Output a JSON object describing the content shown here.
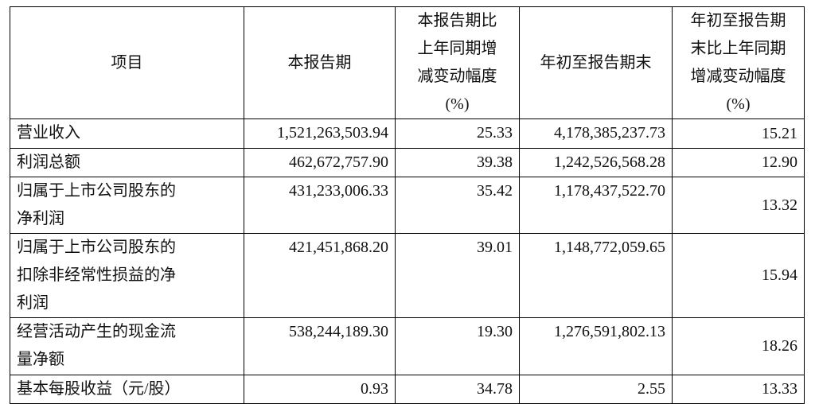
{
  "table": {
    "header": [
      [
        "项目"
      ],
      [
        "本报告期"
      ],
      [
        "本报告期比",
        "上年同期增",
        "减变动幅度",
        "(%)"
      ],
      [
        "年初至报告期末"
      ],
      [
        "年初至报告期",
        "末比上年同期",
        "增减变动幅度",
        "(%)"
      ]
    ],
    "rows": [
      [
        [
          "营业收入"
        ],
        "1,521,263,503.94",
        "25.33",
        "4,178,385,237.73",
        "15.21"
      ],
      [
        [
          "利润总额"
        ],
        "462,672,757.90",
        "39.38",
        "1,242,526,568.28",
        "12.90"
      ],
      [
        [
          "归属于上市公司股东的",
          "净利润"
        ],
        "431,233,006.33",
        "35.42",
        "1,178,437,522.70",
        "13.32"
      ],
      [
        [
          "归属于上市公司股东的",
          "扣除非经常性损益的净",
          "利润"
        ],
        "421,451,868.20",
        "39.01",
        "1,148,772,059.65",
        "15.94"
      ],
      [
        [
          "经营活动产生的现金流",
          "量净额"
        ],
        "538,244,189.30",
        "19.30",
        "1,276,591,802.13",
        "18.26"
      ],
      [
        [
          "基本每股收益（元/股）"
        ],
        "0.93",
        "34.78",
        "2.55",
        "13.33"
      ]
    ]
  }
}
